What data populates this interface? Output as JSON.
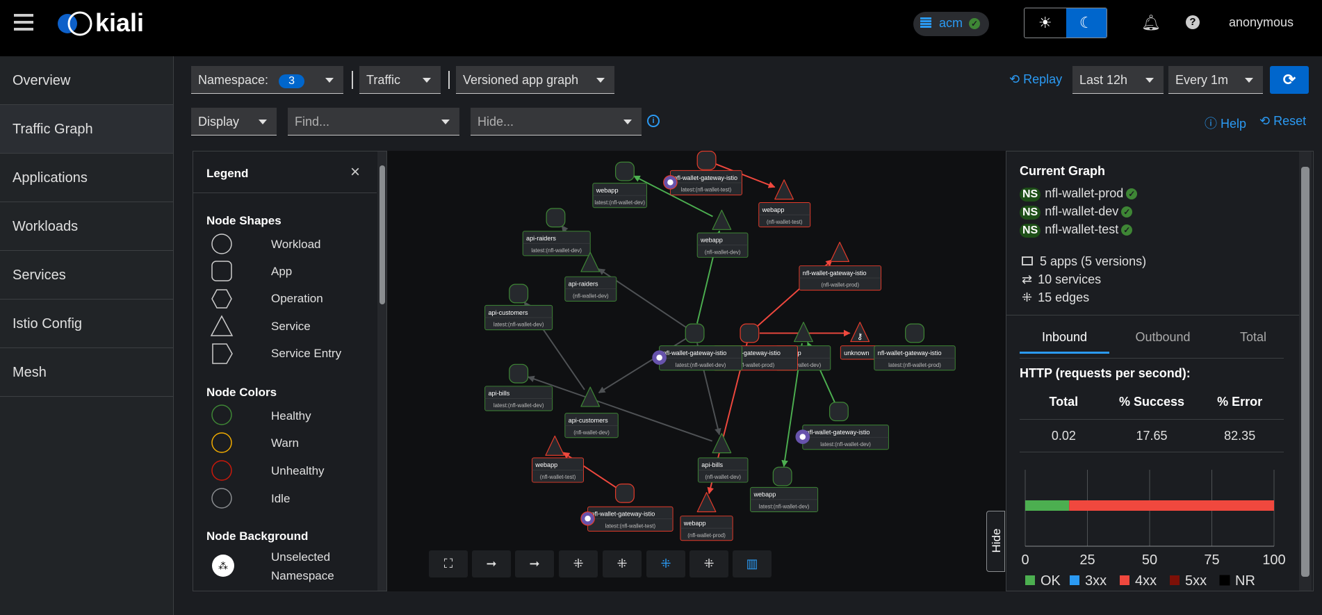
{
  "header": {
    "brand": "kiali",
    "cluster": "acm",
    "user": "anonymous",
    "theme_options": [
      "light",
      "dark"
    ],
    "theme_selected": "dark"
  },
  "sidebar": {
    "items": [
      {
        "label": "Overview"
      },
      {
        "label": "Traffic Graph",
        "selected": true
      },
      {
        "label": "Applications"
      },
      {
        "label": "Workloads"
      },
      {
        "label": "Services"
      },
      {
        "label": "Istio Config"
      },
      {
        "label": "Mesh"
      }
    ]
  },
  "toolbar": {
    "namespace_label": "Namespace:",
    "namespace_count": "3",
    "traffic": "Traffic",
    "graph_type": "Versioned app graph",
    "replay": "Replay",
    "duration": "Last 12h",
    "refresh_interval": "Every 1m",
    "display": "Display",
    "find_placeholder": "Find...",
    "hide_placeholder": "Hide...",
    "help": "Help",
    "reset": "Reset"
  },
  "legend": {
    "title": "Legend",
    "shapes_title": "Node Shapes",
    "shapes": [
      "Workload",
      "App",
      "Operation",
      "Service",
      "Service Entry"
    ],
    "colors_title": "Node Colors",
    "colors": [
      {
        "label": "Healthy",
        "color": "#3e8635"
      },
      {
        "label": "Warn",
        "color": "#f0ab00"
      },
      {
        "label": "Unhealthy",
        "color": "#c9190b"
      },
      {
        "label": "Idle",
        "color": "#8a8d90"
      }
    ],
    "background_title": "Node Background",
    "background": [
      "Unselected",
      "Namespace"
    ]
  },
  "graph": {
    "colors": {
      "healthy": "#3e8635",
      "unhealthy": "#e43b2a",
      "idle": "#55575a",
      "edge_ok": "#4caf50",
      "edge_err": "#f0483e",
      "edge_idle": "#4f5255"
    },
    "nodes": [
      {
        "name": "webapp",
        "sub": "latest:(nfl-wallet-dev)",
        "type": "app",
        "health": "healthy"
      },
      {
        "name": "nfl-wallet-gateway-istio",
        "sub": "latest:(nfl-wallet-test)",
        "type": "app",
        "health": "unhealthy",
        "badge": "ingress"
      },
      {
        "name": "webapp",
        "sub": "(nfl-wallet-test)",
        "type": "service",
        "health": "unhealthy"
      },
      {
        "name": "api-raiders",
        "sub": "latest:(nfl-wallet-dev)",
        "type": "app",
        "health": "healthy"
      },
      {
        "name": "webapp",
        "sub": "(nfl-wallet-dev)",
        "type": "service",
        "health": "healthy"
      },
      {
        "name": "api-raiders",
        "sub": "(nfl-wallet-dev)",
        "type": "service",
        "health": "healthy"
      },
      {
        "name": "nfl-wallet-gateway-istio",
        "sub": "(nfl-wallet-prod)",
        "type": "service",
        "health": "unhealthy"
      },
      {
        "name": "api-customers",
        "sub": "latest:(nfl-wallet-dev)",
        "type": "app",
        "health": "healthy"
      },
      {
        "name": "nfl-wallet-gateway-istio",
        "sub": "(nfl-wallet-prod)",
        "type": "app",
        "health": "unhealthy"
      },
      {
        "name": "webapp",
        "sub": "(nfl-wallet-dev)",
        "type": "service",
        "health": "healthy"
      },
      {
        "name": "unknown",
        "sub": "",
        "type": "service",
        "health": "unhealthy",
        "badge": "key"
      },
      {
        "name": "nfl-wallet-gateway-istio",
        "sub": "latest:(nfl-wallet-prod)",
        "type": "app",
        "health": "healthy"
      },
      {
        "name": "nfl-wallet-gateway-istio",
        "sub": "latest:(nfl-wallet-dev)",
        "type": "app",
        "health": "healthy",
        "badge": "istio"
      },
      {
        "name": "api-bills",
        "sub": "latest:(nfl-wallet-dev)",
        "type": "app",
        "health": "healthy"
      },
      {
        "name": "api-customers",
        "sub": "(nfl-wallet-dev)",
        "type": "service",
        "health": "healthy"
      },
      {
        "name": "nfl-wallet-gateway-istio",
        "sub": "latest:(nfl-wallet-dev)",
        "type": "app",
        "health": "healthy",
        "badge": "istio"
      },
      {
        "name": "webapp",
        "sub": "(nfl-wallet-test)",
        "type": "service",
        "health": "unhealthy"
      },
      {
        "name": "api-bills",
        "sub": "(nfl-wallet-dev)",
        "type": "service",
        "health": "healthy"
      },
      {
        "name": "webapp",
        "sub": "latest:(nfl-wallet-dev)",
        "type": "app",
        "health": "healthy"
      },
      {
        "name": "nfl-wallet-gateway-istio",
        "sub": "latest:(nfl-wallet-test)",
        "type": "app",
        "health": "unhealthy",
        "badge": "ingress"
      },
      {
        "name": "webapp",
        "sub": "(nfl-wallet-prod)",
        "type": "service",
        "health": "unhealthy"
      }
    ],
    "edges": [
      [
        1,
        2,
        "err"
      ],
      [
        4,
        0,
        "ok"
      ],
      [
        12,
        4,
        "ok"
      ],
      [
        5,
        3,
        "idle"
      ],
      [
        12,
        5,
        "idle"
      ],
      [
        14,
        7,
        "idle"
      ],
      [
        12,
        14,
        "idle"
      ],
      [
        17,
        13,
        "idle"
      ],
      [
        12,
        17,
        "idle"
      ],
      [
        8,
        6,
        "err"
      ],
      [
        8,
        10,
        "err"
      ],
      [
        8,
        20,
        "err"
      ],
      [
        9,
        18,
        "ok"
      ],
      [
        15,
        9,
        "ok"
      ],
      [
        19,
        16,
        "err"
      ]
    ],
    "toolbar_icons": [
      "fit-icon",
      "arrow-icon",
      "arrow-icon",
      "layout-icon",
      "layout-icon",
      "layout-active-icon",
      "layout-icon",
      "map-icon"
    ],
    "hide_tab": "Hide"
  },
  "side_panel": {
    "title": "Current Graph",
    "namespaces": [
      "nfl-wallet-prod",
      "nfl-wallet-dev",
      "nfl-wallet-test"
    ],
    "ns_badge": "NS",
    "apps": "5 apps (5 versions)",
    "services": "10 services",
    "edges": "15 edges",
    "tabs": [
      "Inbound",
      "Outbound",
      "Total"
    ],
    "active_tab": "Inbound",
    "http_title": "HTTP (requests per second):",
    "table": {
      "headers": [
        "Total",
        "% Success",
        "% Error"
      ],
      "values": [
        "0.02",
        "17.65",
        "82.35"
      ]
    }
  },
  "chart_data": {
    "type": "bar",
    "orientation": "horizontal",
    "stacked": true,
    "xlim": [
      0,
      100
    ],
    "ticks": [
      "0",
      "25",
      "50",
      "75",
      "100"
    ],
    "series": [
      {
        "name": "OK",
        "values": [
          17.65
        ],
        "color": "#4caf50"
      },
      {
        "name": "3xx",
        "values": [
          0
        ],
        "color": "#2b9af3"
      },
      {
        "name": "4xx",
        "values": [
          82.35
        ],
        "color": "#f0483e"
      },
      {
        "name": "5xx",
        "values": [
          0
        ],
        "color": "#7d1007"
      },
      {
        "name": "NR",
        "values": [
          0
        ],
        "color": "#000000"
      }
    ]
  }
}
